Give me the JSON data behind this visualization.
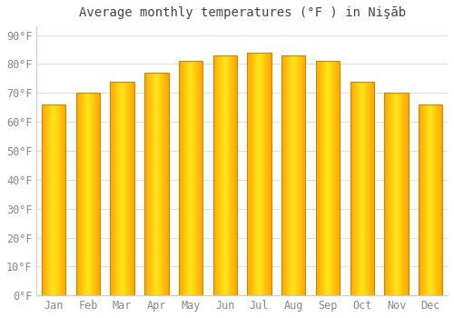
{
  "title": "Average monthly temperatures (°F ) in Nişāb",
  "months": [
    "Jan",
    "Feb",
    "Mar",
    "Apr",
    "May",
    "Jun",
    "Jul",
    "Aug",
    "Sep",
    "Oct",
    "Nov",
    "Dec"
  ],
  "values": [
    66,
    70,
    74,
    77,
    81,
    83,
    84,
    83,
    81,
    74,
    70,
    66
  ],
  "bar_color_main": "#FFA500",
  "bar_color_light": "#FFD040",
  "bar_edge_color": "#CC8800",
  "background_color": "#FFFFFF",
  "plot_bg_color": "#FFFFFF",
  "grid_color": "#E0E0E0",
  "yticks": [
    0,
    10,
    20,
    30,
    40,
    50,
    60,
    70,
    80,
    90
  ],
  "ylim": [
    0,
    93
  ],
  "ylabel_suffix": "°F",
  "title_fontsize": 10,
  "tick_fontsize": 8.5
}
